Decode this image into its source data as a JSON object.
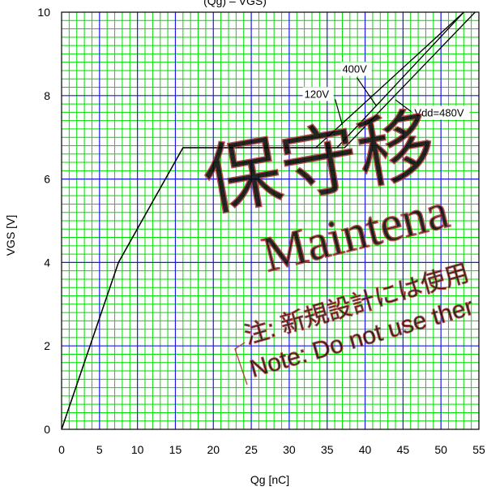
{
  "chart_data": {
    "type": "line",
    "title": "(Qg) – VGS)",
    "xlabel": "Qg [nC]",
    "ylabel": "VGS [V]",
    "xlim": [
      0,
      55
    ],
    "ylim": [
      0,
      10
    ],
    "xticks": [
      "0",
      "5",
      "10",
      "15",
      "20",
      "25",
      "30",
      "35",
      "40",
      "45",
      "50",
      "55"
    ],
    "yticks": [
      "0",
      "2",
      "4",
      "6",
      "8",
      "10"
    ],
    "grid": true,
    "colors": {
      "minor_grid": "#00dd00",
      "major_grid": "#1a1ae6",
      "curve": "#000000",
      "watermark": "#b03030"
    },
    "series": [
      {
        "name": "120V",
        "x": [
          0,
          7.5,
          16,
          33.5,
          53
        ],
        "y": [
          0,
          4.0,
          6.75,
          6.75,
          10.0
        ]
      },
      {
        "name": "400V",
        "x": [
          0,
          7.5,
          16,
          36.3,
          53
        ],
        "y": [
          0,
          4.0,
          6.75,
          6.75,
          10.0
        ]
      },
      {
        "name": "Vdd=480V",
        "x": [
          0,
          7.5,
          16,
          37.3,
          54.5
        ],
        "y": [
          0,
          4.0,
          6.75,
          6.75,
          10.0
        ]
      }
    ],
    "annotations": [
      {
        "text": "120V",
        "x": 32.0,
        "y": 7.95,
        "points_to": {
          "x": 37.0,
          "y": 7.3
        }
      },
      {
        "text": "400V",
        "x": 37.0,
        "y": 8.55,
        "points_to": {
          "x": 41.5,
          "y": 7.75
        }
      },
      {
        "text": "Vdd=480V",
        "x": 46.5,
        "y": 7.5,
        "points_to": {
          "x": 44.0,
          "y": 7.9
        }
      }
    ]
  },
  "watermark": {
    "kanji": "保守移",
    "latin": "Maintena",
    "note_jp": "注: 新規設計には使用",
    "note_en": "Note: Do not use ther"
  }
}
